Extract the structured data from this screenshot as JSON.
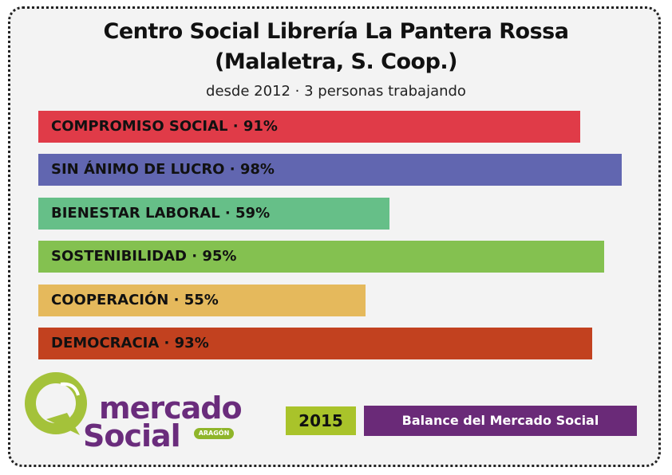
{
  "header": {
    "title_line1": "Centro Social Librería La Pantera Rossa",
    "title_line2": "(Malaletra, S. Coop.)",
    "subtitle": "desde 2012 · 3 personas trabajando"
  },
  "chart_data": {
    "type": "bar",
    "orientation": "horizontal",
    "categories": [
      "COMPROMISO SOCIAL",
      "SIN ÁNIMO DE LUCRO",
      "BIENESTAR LABORAL",
      "SOSTENIBILIDAD",
      "COOPERACIÓN",
      "DEMOCRACIA"
    ],
    "values": [
      91,
      98,
      59,
      95,
      55,
      93
    ],
    "labels": [
      "COMPROMISO SOCIAL · 91%",
      "SIN ÁNIMO DE LUCRO · 98%",
      "BIENESTAR LABORAL · 59%",
      "SOSTENIBILIDAD · 95%",
      "COOPERACIÓN · 55%",
      "DEMOCRACIA · 93%"
    ],
    "colors": [
      "#e03b48",
      "#6166b0",
      "#66bf88",
      "#84c150",
      "#e5b95c",
      "#c2411f"
    ],
    "xlim": [
      0,
      100
    ],
    "grid": false
  },
  "footer": {
    "logo_word1": "mercado",
    "logo_word2": "Social",
    "logo_badge": "ARAGÓN",
    "year": "2015",
    "balance_label": "Balance del Mercado Social",
    "logo_colors": {
      "green": "#a4c23a",
      "purple": "#6a2c7c"
    }
  }
}
